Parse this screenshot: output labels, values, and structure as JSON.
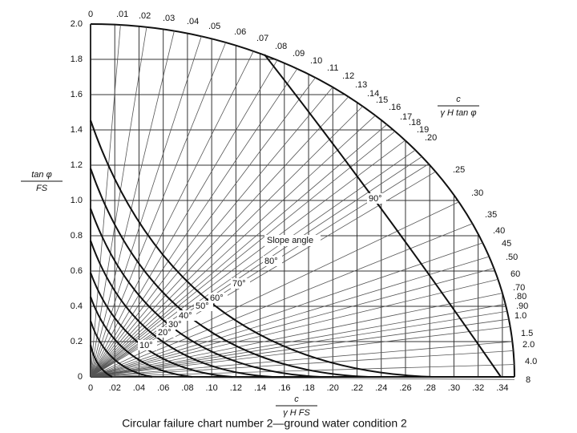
{
  "chart_data": {
    "type": "nomogram",
    "ylabel": {
      "numerator": "tan φ",
      "denominator": "FS"
    },
    "xlabel": {
      "numerator": "c",
      "denominator": "γ H FS"
    },
    "radial_label": {
      "numerator": "c",
      "denominator": "γ H tan φ"
    },
    "xlim": [
      0,
      0.35
    ],
    "ylim": [
      0,
      2.0
    ],
    "xticks": [
      0,
      {
        "value": 0.02,
        "label": ".02"
      },
      {
        "value": 0.04,
        "label": ".04"
      },
      {
        "value": 0.06,
        "label": ".06"
      },
      {
        "value": 0.08,
        "label": ".08"
      },
      {
        "value": 0.1,
        "label": ".10"
      },
      {
        "value": 0.12,
        "label": ".12"
      },
      {
        "value": 0.14,
        "label": ".14"
      },
      {
        "value": 0.16,
        "label": ".16"
      },
      {
        "value": 0.18,
        "label": ".18"
      },
      {
        "value": 0.2,
        "label": ".20"
      },
      {
        "value": 0.22,
        "label": ".22"
      },
      {
        "value": 0.24,
        "label": ".24"
      },
      {
        "value": 0.26,
        "label": ".26"
      },
      {
        "value": 0.28,
        "label": ".28"
      },
      {
        "value": 0.3,
        "label": ".30"
      },
      {
        "value": 0.32,
        "label": ".32"
      },
      {
        "value": 0.34,
        "label": ".34"
      }
    ],
    "yticks": [
      0,
      0.2,
      0.4,
      0.6,
      0.8,
      {
        "value": 1,
        "label": "1.0"
      },
      1.2,
      1.4,
      1.6,
      1.8,
      {
        "value": 2,
        "label": "2.0"
      }
    ],
    "radial_scale": [
      "0",
      ".01",
      ".02",
      ".03",
      ".04",
      ".05",
      ".06",
      ".07",
      ".08",
      ".09",
      ".10",
      ".11",
      ".12",
      ".13",
      ".14",
      ".15",
      ".16",
      ".17",
      ".18",
      ".19",
      ".20",
      ".25",
      ".30",
      ".35",
      ".40",
      "45",
      ".50",
      "60",
      ".70",
      ".80",
      ".90",
      "1.0",
      "1.5",
      "2.0",
      "4.0",
      "8"
    ],
    "slope_title": "Slope angle",
    "slope_labels": [
      "90°",
      "80°",
      "70°",
      "60°",
      "50°",
      "40°",
      "30°",
      "20°",
      "10°"
    ],
    "grid": true
  },
  "caption": "Circular failure chart number 2—ground water condition 2"
}
